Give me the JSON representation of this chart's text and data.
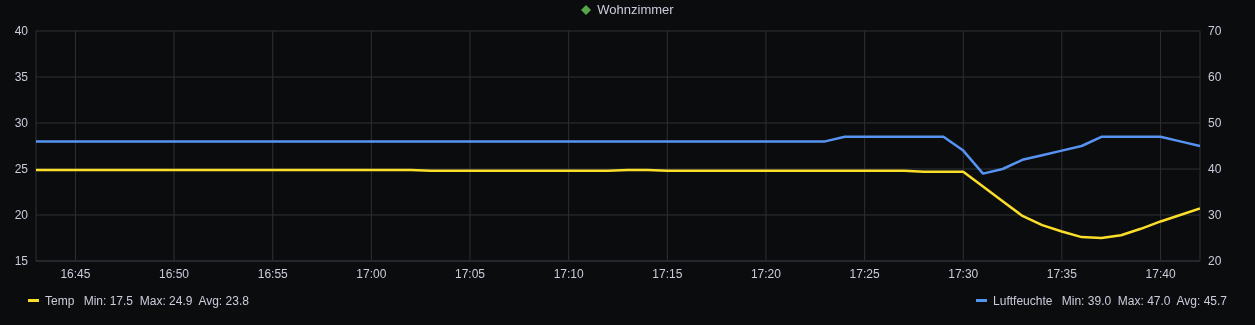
{
  "chart_data": {
    "type": "line",
    "title": "Wohnzimmer",
    "x": [
      16.7167,
      16.7333,
      16.75,
      16.7667,
      16.7833,
      16.8,
      16.8167,
      16.8333,
      16.85,
      16.8667,
      16.8833,
      16.9,
      16.9167,
      16.9333,
      16.95,
      16.9667,
      16.9833,
      17,
      17.0167,
      17.0333,
      17.05,
      17.0667,
      17.0833,
      17.1,
      17.1167,
      17.1333,
      17.15,
      17.1667,
      17.1833,
      17.2,
      17.2167,
      17.2333,
      17.25,
      17.2667,
      17.2833,
      17.3,
      17.3167,
      17.3333,
      17.35,
      17.3667,
      17.3833,
      17.4,
      17.4167,
      17.4333,
      17.45,
      17.4667,
      17.4833,
      17.5,
      17.5167,
      17.5333,
      17.55,
      17.5667,
      17.5833,
      17.6,
      17.6167,
      17.6333,
      17.65,
      17.6667,
      17.6833,
      17.7
    ],
    "series": [
      {
        "name": "Temp",
        "color": "#fade2a",
        "values": [
          24.9,
          24.9,
          24.9,
          24.9,
          24.9,
          24.9,
          24.9,
          24.9,
          24.9,
          24.9,
          24.9,
          24.9,
          24.9,
          24.9,
          24.9,
          24.9,
          24.9,
          24.9,
          24.9,
          24.9,
          24.8,
          24.8,
          24.8,
          24.8,
          24.8,
          24.8,
          24.8,
          24.8,
          24.8,
          24.8,
          24.9,
          24.9,
          24.8,
          24.8,
          24.8,
          24.8,
          24.8,
          24.8,
          24.8,
          24.8,
          24.8,
          24.8,
          24.8,
          24.8,
          24.8,
          24.7,
          24.7,
          24.7,
          23.1,
          21.5,
          19.9,
          18.9,
          18.2,
          17.6,
          17.5,
          17.8,
          18.5,
          19.3,
          20.0,
          20.7
        ]
      },
      {
        "name": "Luftfeuchte",
        "color": "#5794f2",
        "axis": "y2",
        "values": [
          46,
          46,
          46,
          46,
          46,
          46,
          46,
          46,
          46,
          46,
          46,
          46,
          46,
          46,
          46,
          46,
          46,
          46,
          46,
          46,
          46,
          46,
          46,
          46,
          46,
          46,
          46,
          46,
          46,
          46,
          46,
          46,
          46,
          46,
          46,
          46,
          46,
          46,
          46,
          46,
          46,
          47,
          47,
          47,
          47,
          47,
          47,
          44,
          39,
          40,
          42,
          43,
          44,
          45,
          47,
          47,
          47,
          47,
          46,
          45
        ]
      }
    ],
    "xlim": [
      16.7167,
      17.7
    ],
    "xticks": [
      {
        "value": 16.75,
        "label": "16:45"
      },
      {
        "value": 16.8333,
        "label": "16:50"
      },
      {
        "value": 16.9167,
        "label": "16:55"
      },
      {
        "value": 17,
        "label": "17:00"
      },
      {
        "value": 17.0833,
        "label": "17:05"
      },
      {
        "value": 17.1667,
        "label": "17:10"
      },
      {
        "value": 17.25,
        "label": "17:15"
      },
      {
        "value": 17.3333,
        "label": "17:20"
      },
      {
        "value": 17.4167,
        "label": "17:25"
      },
      {
        "value": 17.5,
        "label": "17:30"
      },
      {
        "value": 17.5833,
        "label": "17:35"
      },
      {
        "value": 17.6667,
        "label": "17:40"
      }
    ],
    "ylim": [
      15,
      40
    ],
    "yticks": [
      15,
      20,
      25,
      30,
      35,
      40
    ],
    "y2lim": [
      20,
      70
    ],
    "y2ticks": [
      20,
      30,
      40,
      50,
      60,
      70
    ],
    "grid": true,
    "legend": "bottom",
    "marker": "none",
    "line_style": "solid",
    "annotations": [
      "Min: 17.5  Max: 24.9  Avg: 23.8",
      "Min: 39.0  Max: 47.0  Avg: 45.7"
    ]
  }
}
